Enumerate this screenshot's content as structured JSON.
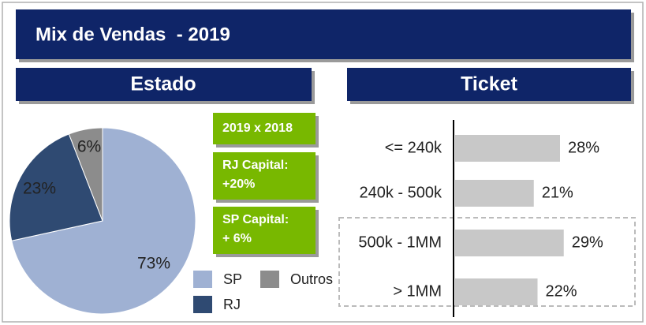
{
  "title": "Mix de Vendas  - 2019",
  "chart_data": [
    {
      "type": "pie",
      "title": "Estado",
      "categories": [
        "SP",
        "RJ",
        "Outros"
      ],
      "values": [
        73,
        23,
        6
      ],
      "value_labels": [
        "73%",
        "23%",
        "6%"
      ],
      "colors": [
        "#9fb1d3",
        "#2f4a72",
        "#8c8c8c"
      ],
      "annotations": [
        [
          "2019 x 2018"
        ],
        [
          "RJ Capital:",
          "+20%"
        ],
        [
          "SP Capital:",
          "+ 6%"
        ]
      ]
    },
    {
      "type": "bar",
      "title": "Ticket",
      "categories": [
        "<= 240k",
        "240k - 500k",
        "500k - 1MM",
        "> 1MM"
      ],
      "values": [
        28,
        21,
        29,
        22
      ],
      "value_labels": [
        "28%",
        "21%",
        "29%",
        "22%"
      ],
      "color": "#c8c8c8"
    }
  ]
}
